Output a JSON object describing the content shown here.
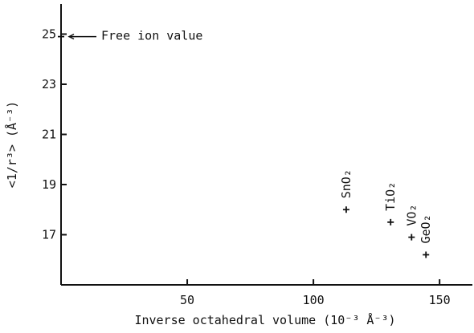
{
  "chart_data": {
    "type": "scatter",
    "xlabel": "Inverse octahedral volume (10⁻³ Å⁻³)",
    "ylabel": "<1/r³>  (Å⁻³)",
    "annotation": "Free ion value",
    "x": [
      0,
      113,
      130.6,
      138.9,
      144.6
    ],
    "y": [
      24.9,
      18.0,
      17.5,
      16.9,
      16.2
    ],
    "labels": [
      null,
      "SnO₂",
      "TiO₂",
      "VO₂",
      "GeO₂"
    ],
    "color": "#111111",
    "xlim": [
      0,
      163
    ],
    "xticks": [
      50,
      100,
      150
    ],
    "ylim": [
      15,
      26.2
    ],
    "yticks": [
      17,
      19,
      21,
      23,
      25
    ],
    "grid": false
  }
}
